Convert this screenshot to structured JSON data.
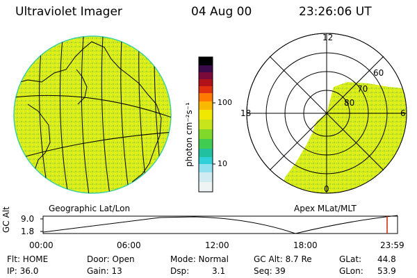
{
  "header": {
    "title": "Ultraviolet Imager",
    "date": "04 Aug 00",
    "time": "23:26:06 UT"
  },
  "colorbar": {
    "label": "photon cm⁻²s⁻¹",
    "ticks": [
      "100",
      "10"
    ],
    "colors": [
      "#000000",
      "#2a0a3a",
      "#5a0a4a",
      "#8a0a2a",
      "#c01010",
      "#e04010",
      "#ff8c00",
      "#ffd000",
      "#e8f000",
      "#b0e020",
      "#60d030",
      "#20c080",
      "#30d0d0",
      "#a0e8f0",
      "#d8f0f4",
      "#eef6f6"
    ]
  },
  "panels": {
    "geo_label": "Geographic Lat/Lon",
    "apex_label": "Apex MLat/MLT",
    "apex_mlt_labels": [
      "12",
      "18",
      "6",
      "0"
    ],
    "apex_lat_labels": [
      "60",
      "70",
      "80"
    ]
  },
  "timeline": {
    "ylabel": "GC Alt",
    "ticks_y": [
      "9.0",
      "1.8"
    ],
    "ticks_x": [
      "00:00",
      "06:00",
      "12:00",
      "18:00",
      "23:59"
    ],
    "marker_color": "#cc2200"
  },
  "status": {
    "flt": "Flt: HOME",
    "ip": "IP: 36.0",
    "door": "Door: Open",
    "gain": "Gain: 13",
    "mode": "Mode: Normal",
    "dsp": "Dsp:",
    "dsp_val": "3.1",
    "gc_alt": "GC Alt: 8.7 Re",
    "seq": "Seq: 39",
    "glat": "GLat:",
    "glat_val": "44.8",
    "glon": "GLon:",
    "glon_val": "53.9"
  }
}
